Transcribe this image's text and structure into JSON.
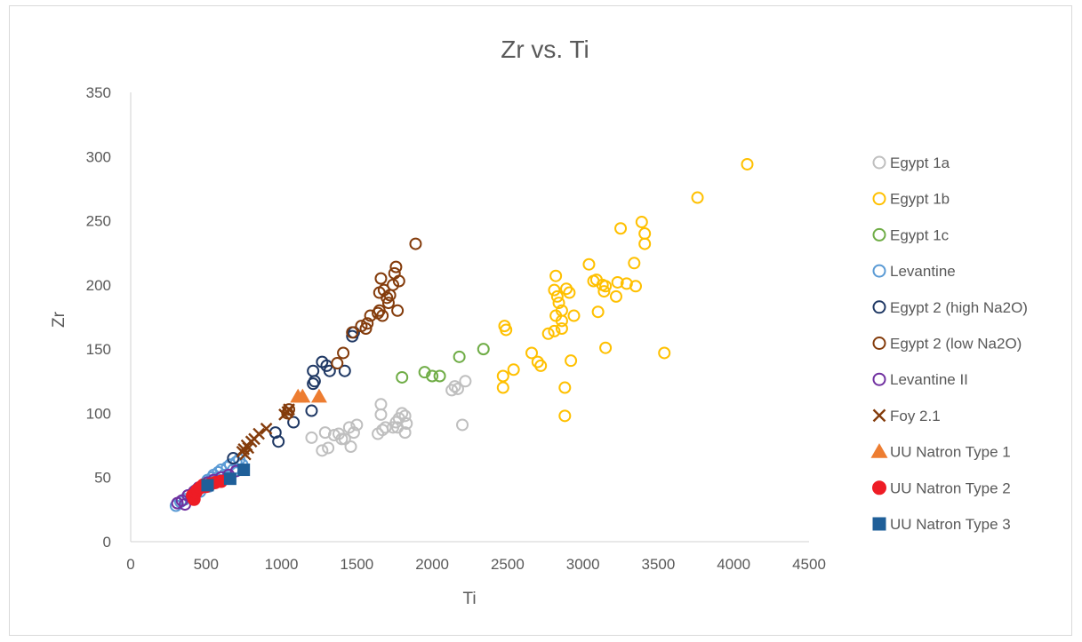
{
  "chart_data": {
    "type": "scatter",
    "title": "Zr vs. Ti",
    "xlabel": "Ti",
    "ylabel": "Zr",
    "xlim": [
      0,
      4500
    ],
    "ylim": [
      0,
      350
    ],
    "xticks": [
      0,
      500,
      1000,
      1500,
      2000,
      2500,
      3000,
      3500,
      4000,
      4500
    ],
    "yticks": [
      0,
      50,
      100,
      150,
      200,
      250,
      300,
      350
    ],
    "grid": false,
    "legend_position": "right",
    "series": [
      {
        "name": "Egypt 1a",
        "marker": "open-circle",
        "color": "#bfbfbf",
        "points": [
          [
            1200,
            81
          ],
          [
            1270,
            71
          ],
          [
            1290,
            85
          ],
          [
            1310,
            73
          ],
          [
            1350,
            83
          ],
          [
            1380,
            84
          ],
          [
            1400,
            80
          ],
          [
            1420,
            80
          ],
          [
            1450,
            89
          ],
          [
            1460,
            74
          ],
          [
            1480,
            85
          ],
          [
            1500,
            91
          ],
          [
            1640,
            84
          ],
          [
            1660,
            99
          ],
          [
            1660,
            107
          ],
          [
            1670,
            87
          ],
          [
            1690,
            89
          ],
          [
            1740,
            89
          ],
          [
            1760,
            93
          ],
          [
            1770,
            89
          ],
          [
            1780,
            96
          ],
          [
            1800,
            100
          ],
          [
            1820,
            85
          ],
          [
            1820,
            98
          ],
          [
            1830,
            92
          ],
          [
            2130,
            118
          ],
          [
            2150,
            121
          ],
          [
            2170,
            119
          ],
          [
            2200,
            91
          ],
          [
            2220,
            125
          ]
        ]
      },
      {
        "name": "Egypt 1b",
        "marker": "open-circle",
        "color": "#ffc000",
        "points": [
          [
            2470,
            120
          ],
          [
            2470,
            129
          ],
          [
            2480,
            168
          ],
          [
            2490,
            165
          ],
          [
            2540,
            134
          ],
          [
            2660,
            147
          ],
          [
            2700,
            140
          ],
          [
            2720,
            137
          ],
          [
            2770,
            162
          ],
          [
            2810,
            164
          ],
          [
            2810,
            196
          ],
          [
            2820,
            207
          ],
          [
            2820,
            176
          ],
          [
            2830,
            191
          ],
          [
            2840,
            186
          ],
          [
            2860,
            180
          ],
          [
            2860,
            172
          ],
          [
            2860,
            166
          ],
          [
            2880,
            98
          ],
          [
            2880,
            120
          ],
          [
            2890,
            197
          ],
          [
            2910,
            194
          ],
          [
            2920,
            141
          ],
          [
            2940,
            176
          ],
          [
            3040,
            216
          ],
          [
            3070,
            203
          ],
          [
            3090,
            204
          ],
          [
            3100,
            179
          ],
          [
            3130,
            200
          ],
          [
            3140,
            195
          ],
          [
            3150,
            151
          ],
          [
            3150,
            199
          ],
          [
            3220,
            191
          ],
          [
            3230,
            202
          ],
          [
            3250,
            244
          ],
          [
            3290,
            201
          ],
          [
            3340,
            217
          ],
          [
            3350,
            199
          ],
          [
            3390,
            249
          ],
          [
            3410,
            240
          ],
          [
            3410,
            232
          ],
          [
            3540,
            147
          ],
          [
            3760,
            268
          ],
          [
            4090,
            294
          ]
        ]
      },
      {
        "name": "Egypt 1c",
        "marker": "open-circle",
        "color": "#70ad47",
        "points": [
          [
            1800,
            128
          ],
          [
            1950,
            132
          ],
          [
            2000,
            129
          ],
          [
            2050,
            129
          ],
          [
            2180,
            144
          ],
          [
            2340,
            150
          ]
        ]
      },
      {
        "name": "Levantine",
        "marker": "open-circle",
        "color": "#5b9bd5",
        "points": [
          [
            300,
            28
          ],
          [
            330,
            31
          ],
          [
            360,
            33
          ],
          [
            380,
            36
          ],
          [
            400,
            34
          ],
          [
            420,
            38
          ],
          [
            430,
            40
          ],
          [
            450,
            42
          ],
          [
            460,
            39
          ],
          [
            480,
            44
          ],
          [
            500,
            46
          ],
          [
            510,
            48
          ],
          [
            520,
            43
          ],
          [
            540,
            50
          ],
          [
            550,
            52
          ],
          [
            560,
            48
          ],
          [
            580,
            54
          ],
          [
            600,
            56
          ],
          [
            620,
            52
          ],
          [
            640,
            58
          ],
          [
            660,
            60
          ],
          [
            680,
            56
          ],
          [
            700,
            62
          ],
          [
            720,
            64
          ],
          [
            740,
            60
          ]
        ]
      },
      {
        "name": "Egypt 2 (high Na2O)",
        "marker": "open-circle",
        "color": "#1f3864",
        "points": [
          [
            680,
            65
          ],
          [
            960,
            85
          ],
          [
            980,
            78
          ],
          [
            1080,
            93
          ],
          [
            1200,
            102
          ],
          [
            1210,
            123
          ],
          [
            1220,
            125
          ],
          [
            1210,
            133
          ],
          [
            1270,
            140
          ],
          [
            1300,
            137
          ],
          [
            1320,
            133
          ],
          [
            1420,
            133
          ],
          [
            1470,
            160
          ],
          [
            1480,
            163
          ]
        ]
      },
      {
        "name": "Egypt 2 (low Na2O)",
        "marker": "open-circle",
        "color": "#843c0c",
        "points": [
          [
            1040,
            100
          ],
          [
            1050,
            103
          ],
          [
            1370,
            139
          ],
          [
            1410,
            147
          ],
          [
            1470,
            163
          ],
          [
            1530,
            168
          ],
          [
            1560,
            166
          ],
          [
            1570,
            170
          ],
          [
            1590,
            176
          ],
          [
            1640,
            178
          ],
          [
            1650,
            194
          ],
          [
            1650,
            180
          ],
          [
            1660,
            205
          ],
          [
            1670,
            176
          ],
          [
            1680,
            196
          ],
          [
            1700,
            190
          ],
          [
            1710,
            186
          ],
          [
            1720,
            192
          ],
          [
            1740,
            200
          ],
          [
            1750,
            209
          ],
          [
            1760,
            214
          ],
          [
            1770,
            180
          ],
          [
            1780,
            203
          ],
          [
            1890,
            232
          ]
        ]
      },
      {
        "name": "Levantine II",
        "marker": "open-circle",
        "color": "#7030a0",
        "points": [
          [
            310,
            30
          ],
          [
            340,
            32
          ],
          [
            360,
            29
          ],
          [
            380,
            36
          ],
          [
            420,
            39
          ],
          [
            450,
            42
          ],
          [
            480,
            44
          ],
          [
            510,
            46
          ],
          [
            550,
            48
          ],
          [
            600,
            50
          ],
          [
            650,
            52
          ],
          [
            700,
            55
          ]
        ]
      },
      {
        "name": "Foy 2.1",
        "marker": "x",
        "color": "#843c0c",
        "points": [
          [
            740,
            70
          ],
          [
            750,
            72
          ],
          [
            760,
            68
          ],
          [
            770,
            75
          ],
          [
            780,
            73
          ],
          [
            800,
            78
          ],
          [
            820,
            80
          ],
          [
            850,
            84
          ],
          [
            900,
            88
          ],
          [
            1020,
            99
          ],
          [
            1040,
            101
          ],
          [
            1050,
            103
          ]
        ]
      },
      {
        "name": "UU Natron Type 1",
        "marker": "triangle",
        "color": "#ed7d31",
        "points": [
          [
            1110,
            113
          ],
          [
            1140,
            113
          ],
          [
            1250,
            113
          ]
        ]
      },
      {
        "name": "UU Natron Type 2",
        "marker": "filled-circle",
        "color": "#ee1c25",
        "points": [
          [
            410,
            36
          ],
          [
            420,
            33
          ],
          [
            430,
            38
          ],
          [
            440,
            40
          ],
          [
            460,
            42
          ],
          [
            480,
            44
          ],
          [
            500,
            43
          ],
          [
            530,
            45
          ],
          [
            560,
            46
          ],
          [
            600,
            47
          ]
        ]
      },
      {
        "name": "UU Natron Type 3",
        "marker": "square",
        "color": "#1f5f99",
        "points": [
          [
            510,
            44
          ],
          [
            660,
            49
          ],
          [
            750,
            56
          ]
        ]
      }
    ]
  }
}
